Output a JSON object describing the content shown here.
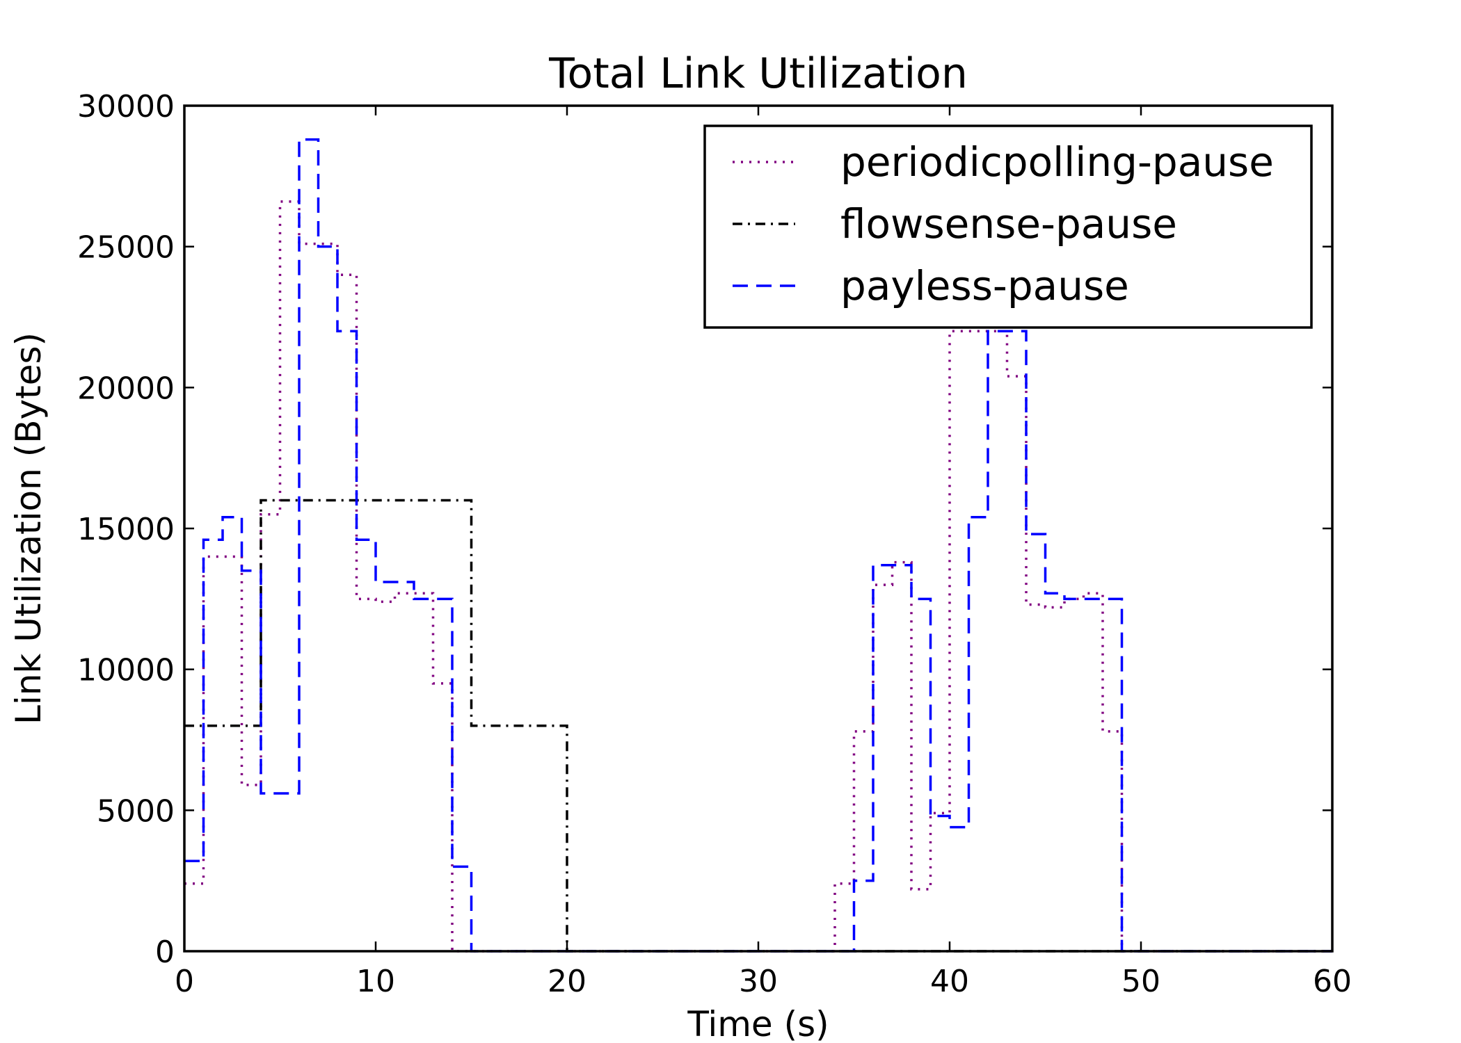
{
  "chart_data": {
    "type": "line",
    "step": "post",
    "title": "Total Link Utilization",
    "xlabel": "Time (s)",
    "ylabel": "Link Utilization (Bytes)",
    "xlim": [
      0,
      60
    ],
    "ylim": [
      0,
      30000
    ],
    "xticks": [
      0,
      10,
      20,
      30,
      40,
      50,
      60
    ],
    "yticks": [
      0,
      5000,
      10000,
      15000,
      20000,
      25000,
      30000
    ],
    "grid": false,
    "legend_position": "top-right",
    "series": [
      {
        "name": "periodicpolling-pause",
        "color": "#800080",
        "style": "dotted",
        "points": [
          [
            0,
            2400
          ],
          [
            1,
            14000
          ],
          [
            3,
            5900
          ],
          [
            4,
            15500
          ],
          [
            5,
            26600
          ],
          [
            6,
            25100
          ],
          [
            8,
            24000
          ],
          [
            9,
            12500
          ],
          [
            10,
            12400
          ],
          [
            11,
            12700
          ],
          [
            13,
            9500
          ],
          [
            14,
            0
          ],
          [
            34,
            2400
          ],
          [
            35,
            7800
          ],
          [
            36,
            13000
          ],
          [
            37,
            13800
          ],
          [
            38,
            2200
          ],
          [
            39,
            4900
          ],
          [
            40,
            22000
          ],
          [
            42,
            22000
          ],
          [
            43,
            20400
          ],
          [
            44,
            12300
          ],
          [
            45,
            12200
          ],
          [
            46,
            12500
          ],
          [
            47,
            12700
          ],
          [
            48,
            7800
          ],
          [
            49,
            0
          ],
          [
            60,
            0
          ]
        ]
      },
      {
        "name": "flowsense-pause",
        "color": "#000000",
        "style": "dashdot",
        "points": [
          [
            0,
            8000
          ],
          [
            4,
            16000
          ],
          [
            15,
            8000
          ],
          [
            20,
            0
          ],
          [
            60,
            0
          ]
        ]
      },
      {
        "name": "payless-pause",
        "color": "#0000ff",
        "style": "dashed",
        "points": [
          [
            0,
            3200
          ],
          [
            1,
            14600
          ],
          [
            2,
            15400
          ],
          [
            3,
            13500
          ],
          [
            4,
            5600
          ],
          [
            6,
            28800
          ],
          [
            7,
            25000
          ],
          [
            8,
            22000
          ],
          [
            9,
            14600
          ],
          [
            10,
            13100
          ],
          [
            12,
            12500
          ],
          [
            14,
            3000
          ],
          [
            15,
            0
          ],
          [
            35,
            2500
          ],
          [
            36,
            13700
          ],
          [
            38,
            12500
          ],
          [
            39,
            4800
          ],
          [
            40,
            4400
          ],
          [
            41,
            15400
          ],
          [
            42,
            22000
          ],
          [
            44,
            14800
          ],
          [
            45,
            12700
          ],
          [
            46,
            12500
          ],
          [
            48,
            12500
          ],
          [
            49,
            0
          ],
          [
            60,
            0
          ]
        ]
      }
    ]
  }
}
